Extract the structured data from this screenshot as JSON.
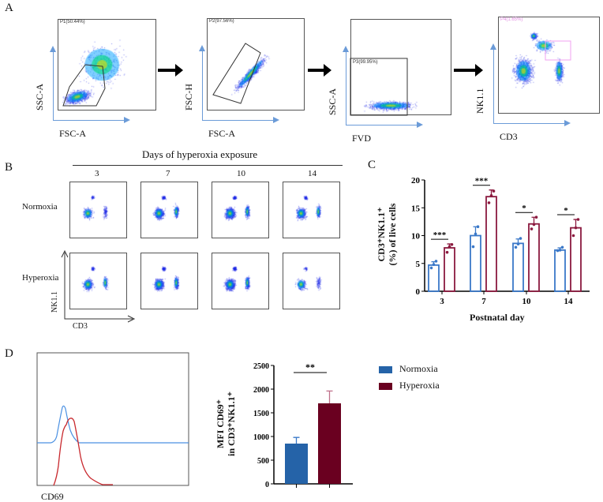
{
  "panels": {
    "A": "A",
    "B": "B",
    "C": "C",
    "D": "D"
  },
  "panel_a": {
    "plots": [
      {
        "gate": "P1(50.44%)",
        "x_label": "FSC-A",
        "y_label": "SSC-A"
      },
      {
        "gate": "P2(97.56%)",
        "x_label": "FSC-A",
        "y_label": "FSC-H"
      },
      {
        "gate": "P3(99.95%)",
        "x_label": "FVD",
        "y_label": "SSC-A"
      },
      {
        "gate": "P4(1.65%)",
        "x_label": "CD3",
        "y_label": "NK1.1"
      }
    ]
  },
  "panel_b": {
    "title": "Days of hyperoxia exposure",
    "days": [
      "3",
      "7",
      "10",
      "14"
    ],
    "rows": [
      "Normoxia",
      "Hyperoxia"
    ],
    "x_label": "CD3",
    "y_label": "NK1.1"
  },
  "colors": {
    "normoxia": "#3a78c8",
    "hyperoxia": "#8b1a3f",
    "normoxia_fill": "#2563a8",
    "hyperoxia_fill": "#6a0020"
  },
  "chart_data": [
    {
      "type": "bar",
      "title": "",
      "xlabel": "Postnatal day",
      "ylabel": "CD3⁺NK1.1⁺ (%) of live cells",
      "ylabel_line1": "CD3⁺NK1.1⁺",
      "ylabel_line2": "(%) of live cells",
      "ylim": [
        0,
        20
      ],
      "yticks": [
        "0",
        "5",
        "10",
        "15",
        "20"
      ],
      "categories": [
        "3",
        "7",
        "10",
        "14"
      ],
      "series": [
        {
          "name": "Normoxia",
          "values": [
            4.7,
            10.0,
            8.6,
            7.4
          ],
          "sd": [
            0.6,
            1.6,
            0.8,
            0.4
          ],
          "points": [
            [
              4.2,
              4.8,
              5.4
            ],
            [
              8.0,
              10.3,
              11.6
            ],
            [
              7.9,
              8.5,
              9.5
            ],
            [
              7.3,
              7.4,
              7.9
            ]
          ]
        },
        {
          "name": "Hyperoxia",
          "values": [
            7.8,
            17.0,
            12.1,
            11.4
          ],
          "sd": [
            0.7,
            1.2,
            1.2,
            1.5
          ],
          "points": [
            [
              7.0,
              8.0,
              8.4
            ],
            [
              15.9,
              17.2,
              18.0
            ],
            [
              11.2,
              12.0,
              13.3
            ],
            [
              10.0,
              11.4,
              12.9
            ]
          ]
        }
      ],
      "significance": [
        "***",
        "***",
        "*",
        "*"
      ]
    },
    {
      "type": "bar",
      "xlabel": "",
      "ylabel": "MFI CD69⁺ in CD3⁺NK1.1⁺",
      "ylabel_line1": "MFI CD69⁺",
      "ylabel_line2": "in CD3⁺NK1.1⁺",
      "ylim": [
        0,
        2500
      ],
      "yticks": [
        "0",
        "500",
        "1000",
        "1500",
        "2000",
        "2500"
      ],
      "categories": [
        "Normoxia",
        "Hyperoxia"
      ],
      "values": [
        850,
        1700
      ],
      "sd": [
        130,
        260
      ],
      "significance": "**",
      "legend": [
        "Normoxia",
        "Hyperoxia"
      ],
      "legend_position": "right"
    }
  ],
  "panel_d_hist": {
    "x_label": "CD69"
  }
}
